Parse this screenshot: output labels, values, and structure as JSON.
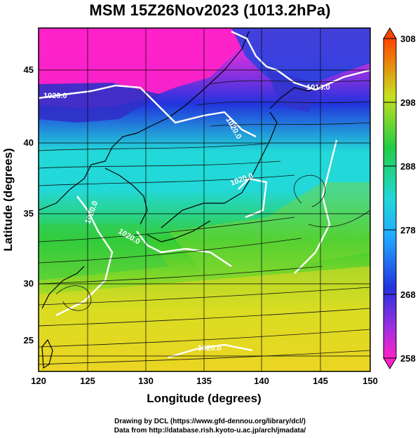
{
  "title": "MSM 15Z26Nov2023 (1013.2hPa)",
  "x_axis": {
    "label": "Longitude (degrees)",
    "ticks": [
      "120",
      "125",
      "130",
      "135",
      "140",
      "145",
      "150"
    ]
  },
  "y_axis": {
    "label": "Latitude  (degrees)",
    "ticks": [
      "45",
      "40",
      "35",
      "30",
      "25"
    ]
  },
  "colorbar": {
    "ticks": [
      "308",
      "298",
      "288",
      "278",
      "268",
      "258"
    ]
  },
  "contour_labels": [
    "1020.0",
    "1020.0",
    "1020.0",
    "1020.0",
    "1020.0",
    "1016.0",
    "1020.0"
  ],
  "credits": {
    "line1": "Drawing by DCL (https://www.gfd-dennou.org/library/dcl/)",
    "line2": "Data from http://database.rish.kyoto-u.ac.jp/arch/jmadata/"
  },
  "colors": {
    "cold": "#ff22c8",
    "cool": "#2233dd",
    "mid": "#22d8d8",
    "warm": "#33cc33",
    "hot": "#f0d020"
  }
}
